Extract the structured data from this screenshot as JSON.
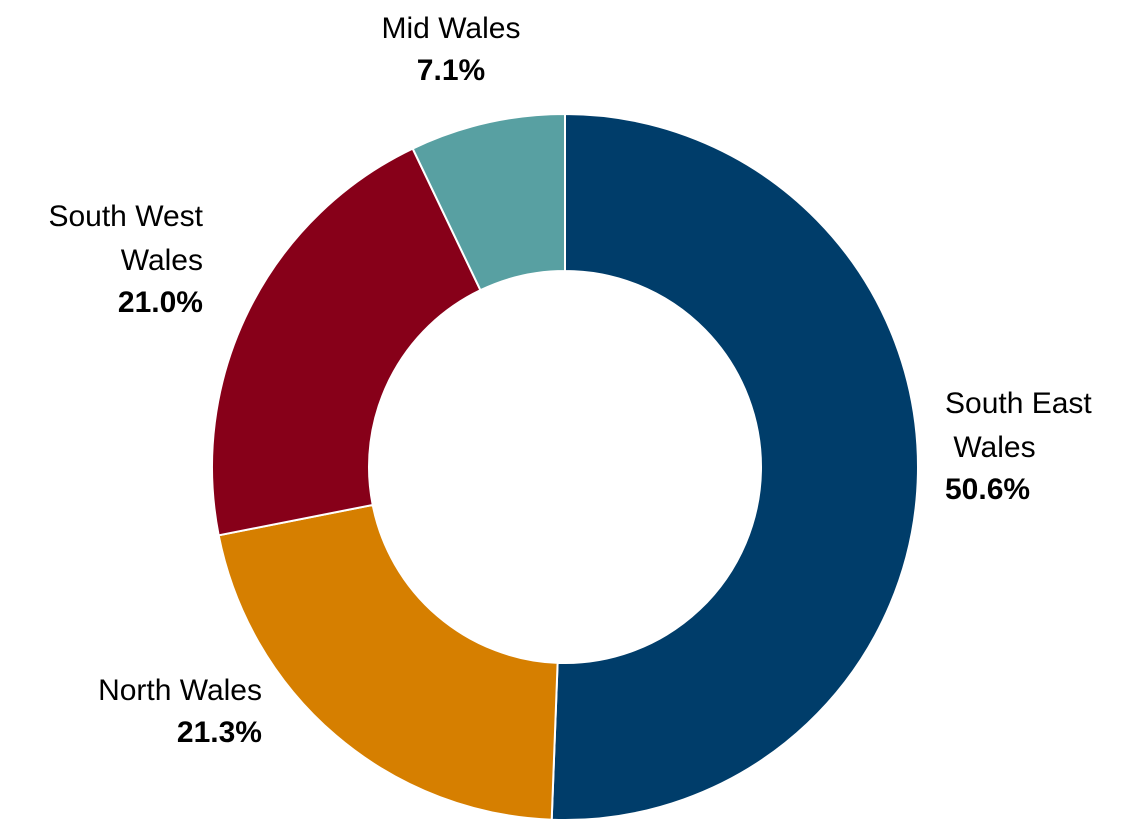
{
  "chart_data": {
    "type": "donut",
    "categories": [
      "South East Wales",
      "North Wales",
      "South West Wales",
      "Mid Wales"
    ],
    "values": [
      50.6,
      21.3,
      21.0,
      7.1
    ],
    "value_labels": [
      "50.6%",
      "21.3%",
      "21.0%",
      "7.1%"
    ],
    "colors": [
      "#003d6a",
      "#d67f00",
      "#870019",
      "#58a0a2"
    ]
  }
}
